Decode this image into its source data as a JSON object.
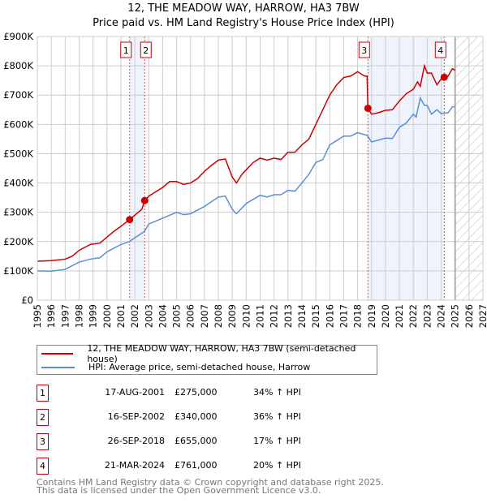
{
  "title_line1": "12, THE MEADOW WAY, HARROW, HA3 7BW",
  "title_line2": "Price paid vs. HM Land Registry's House Price Index (HPI)",
  "colors": {
    "property": "#cc0000",
    "hpi": "#5b8fd4",
    "shade": "#eef3fc"
  },
  "chart_data": {
    "type": "line",
    "title": "12, THE MEADOW WAY, HARROW, HA3 7BW — Price paid vs. HM Land Registry's House Price Index (HPI)",
    "xlim": [
      1995,
      2027
    ],
    "ylim": [
      0,
      900000
    ],
    "x_ticks": [
      "1995",
      "1996",
      "1997",
      "1998",
      "1999",
      "2000",
      "2001",
      "2002",
      "2003",
      "2004",
      "2005",
      "2006",
      "2007",
      "2008",
      "2009",
      "2010",
      "2011",
      "2012",
      "2013",
      "2014",
      "2015",
      "2016",
      "2017",
      "2018",
      "2019",
      "2020",
      "2021",
      "2022",
      "2023",
      "2024",
      "2025",
      "2026",
      "2027"
    ],
    "y_ticks": [
      {
        "v": 0,
        "label": "£0"
      },
      {
        "v": 100000,
        "label": "£100K"
      },
      {
        "v": 200000,
        "label": "£200K"
      },
      {
        "v": 300000,
        "label": "£300K"
      },
      {
        "v": 400000,
        "label": "£400K"
      },
      {
        "v": 500000,
        "label": "£500K"
      },
      {
        "v": 600000,
        "label": "£600K"
      },
      {
        "v": 700000,
        "label": "£700K"
      },
      {
        "v": 800000,
        "label": "£800K"
      },
      {
        "v": 900000,
        "label": "£900K"
      }
    ],
    "grid": true,
    "forecast_hatch_from": 2025.0,
    "series": [
      {
        "name": "12, THE MEADOW WAY, HARROW, HA3 7BW (semi-detached house)",
        "color": "#cc0000",
        "points": [
          [
            1995,
            133
          ],
          [
            1996,
            135
          ],
          [
            1997,
            140
          ],
          [
            1997.5,
            150
          ],
          [
            1998,
            170
          ],
          [
            1998.8,
            190
          ],
          [
            1999.5,
            195
          ],
          [
            2000,
            215
          ],
          [
            2000.5,
            235
          ],
          [
            2001,
            252
          ],
          [
            2001.63,
            275
          ],
          [
            2002,
            290
          ],
          [
            2002.5,
            310
          ],
          [
            2002.71,
            340
          ],
          [
            2003,
            355
          ],
          [
            2003.5,
            370
          ],
          [
            2004,
            385
          ],
          [
            2004.5,
            405
          ],
          [
            2005,
            405
          ],
          [
            2005.5,
            395
          ],
          [
            2006,
            400
          ],
          [
            2006.5,
            415
          ],
          [
            2007,
            440
          ],
          [
            2007.5,
            460
          ],
          [
            2008,
            478
          ],
          [
            2008.5,
            482
          ],
          [
            2009,
            420
          ],
          [
            2009.3,
            400
          ],
          [
            2009.7,
            430
          ],
          [
            2010,
            445
          ],
          [
            2010.5,
            470
          ],
          [
            2011,
            485
          ],
          [
            2011.5,
            478
          ],
          [
            2012,
            485
          ],
          [
            2012.5,
            480
          ],
          [
            2013,
            505
          ],
          [
            2013.5,
            505
          ],
          [
            2014,
            530
          ],
          [
            2014.5,
            550
          ],
          [
            2015,
            600
          ],
          [
            2015.4,
            640
          ],
          [
            2016,
            700
          ],
          [
            2016.5,
            735
          ],
          [
            2017,
            760
          ],
          [
            2017.5,
            765
          ],
          [
            2018,
            780
          ],
          [
            2018.5,
            765
          ],
          [
            2018.68,
            765
          ],
          [
            2018.74,
            655
          ],
          [
            2019,
            635
          ],
          [
            2019.5,
            640
          ],
          [
            2020,
            648
          ],
          [
            2020.5,
            650
          ],
          [
            2021,
            680
          ],
          [
            2021.5,
            705
          ],
          [
            2022,
            720
          ],
          [
            2022.3,
            745
          ],
          [
            2022.5,
            730
          ],
          [
            2022.8,
            800
          ],
          [
            2023,
            775
          ],
          [
            2023.3,
            775
          ],
          [
            2023.7,
            735
          ],
          [
            2024,
            755
          ],
          [
            2024.22,
            761
          ],
          [
            2024.5,
            765
          ],
          [
            2024.8,
            790
          ],
          [
            2025,
            785
          ]
        ]
      },
      {
        "name": "HPI: Average price, semi-detached house, Harrow",
        "color": "#5b8fd4",
        "points": [
          [
            1995,
            100
          ],
          [
            1996,
            99
          ],
          [
            1997,
            105
          ],
          [
            1998,
            130
          ],
          [
            1998.8,
            140
          ],
          [
            1999.5,
            145
          ],
          [
            2000,
            165
          ],
          [
            2001,
            190
          ],
          [
            2001.6,
            200
          ],
          [
            2002.7,
            235
          ],
          [
            2003,
            260
          ],
          [
            2004,
            280
          ],
          [
            2004.5,
            290
          ],
          [
            2005,
            300
          ],
          [
            2005.5,
            292
          ],
          [
            2006,
            295
          ],
          [
            2007,
            320
          ],
          [
            2008,
            352
          ],
          [
            2008.5,
            355
          ],
          [
            2009,
            310
          ],
          [
            2009.3,
            295
          ],
          [
            2010,
            330
          ],
          [
            2011,
            358
          ],
          [
            2011.5,
            352
          ],
          [
            2012,
            360
          ],
          [
            2012.5,
            360
          ],
          [
            2013,
            375
          ],
          [
            2013.5,
            372
          ],
          [
            2014,
            400
          ],
          [
            2014.5,
            430
          ],
          [
            2015,
            470
          ],
          [
            2015.5,
            480
          ],
          [
            2016,
            530
          ],
          [
            2016.5,
            545
          ],
          [
            2017,
            560
          ],
          [
            2017.5,
            560
          ],
          [
            2018,
            572
          ],
          [
            2018.7,
            562
          ],
          [
            2019,
            540
          ],
          [
            2020,
            553
          ],
          [
            2020.5,
            552
          ],
          [
            2021,
            590
          ],
          [
            2021.5,
            605
          ],
          [
            2022,
            635
          ],
          [
            2022.2,
            625
          ],
          [
            2022.5,
            690
          ],
          [
            2022.8,
            665
          ],
          [
            2023,
            665
          ],
          [
            2023.3,
            635
          ],
          [
            2023.7,
            650
          ],
          [
            2024,
            637
          ],
          [
            2024.5,
            640
          ],
          [
            2024.8,
            660
          ],
          [
            2025,
            660
          ]
        ]
      }
    ],
    "sales": [
      {
        "n": "1",
        "x": 2001.63,
        "price": 275000,
        "date": "17-AUG-2001",
        "price_label": "£275,000",
        "hpi": "34% ↑ HPI"
      },
      {
        "n": "2",
        "x": 2002.71,
        "price": 340000,
        "date": "16-SEP-2002",
        "price_label": "£340,000",
        "hpi": "36% ↑ HPI"
      },
      {
        "n": "3",
        "x": 2018.74,
        "price": 655000,
        "date": "26-SEP-2018",
        "price_label": "£655,000",
        "hpi": "17% ↑ HPI"
      },
      {
        "n": "4",
        "x": 2024.22,
        "price": 761000,
        "date": "21-MAR-2024",
        "price_label": "£761,000",
        "hpi": "20% ↑ HPI"
      }
    ],
    "shaded_periods": [
      [
        2001.63,
        2002.71
      ],
      [
        2018.74,
        2024.22
      ]
    ]
  },
  "legend": {
    "property": "12, THE MEADOW WAY, HARROW, HA3 7BW (semi-detached house)",
    "hpi": "HPI: Average price, semi-detached house, Harrow"
  },
  "footer": {
    "line1": "Contains HM Land Registry data © Crown copyright and database right 2025.",
    "line2": "This data is licensed under the Open Government Licence v3.0."
  }
}
